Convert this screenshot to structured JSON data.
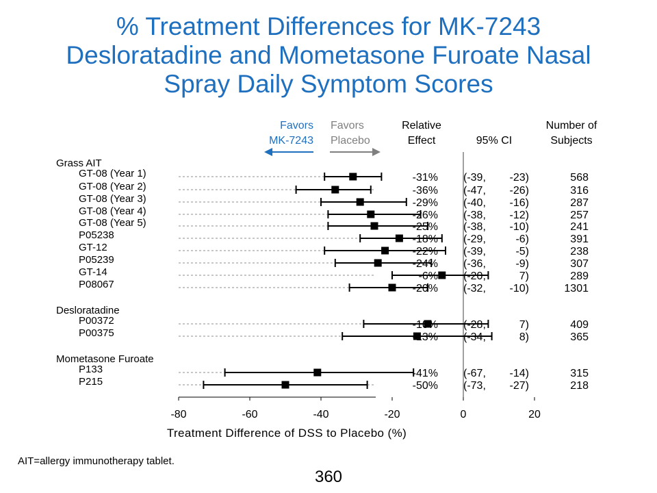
{
  "title_lines": [
    "% Treatment Differences for MK-7243",
    "Desloratadine and Mometasone Furoate Nasal",
    "Spray Daily Symptom Scores"
  ],
  "favors_left": [
    "Favors",
    "MK-7243"
  ],
  "favors_right": [
    "Favors",
    "Placebo"
  ],
  "col_headers": {
    "effect": [
      "Relative",
      "Effect"
    ],
    "ci": "95% CI",
    "n": [
      "Number of",
      "Subjects"
    ]
  },
  "colors": {
    "title": "#1f6fbf",
    "favors_left": "#1f6fbf",
    "favors_right": "#7f7f7f",
    "ref_line": "#808080",
    "dashes": "#8c8c8c"
  },
  "footnote": "AIT=allergy immunotherapy tablet.",
  "page_number": "360",
  "chart_data": {
    "type": "forest",
    "xlabel": "Treatment Difference of DSS to Placebo (%)",
    "xlim": [
      -80,
      25
    ],
    "xticks": [
      -80,
      -60,
      -40,
      -20,
      0,
      20
    ],
    "reference_line": 0,
    "groups": [
      {
        "name": "Grass AIT",
        "studies": [
          {
            "label": "GT-08 (Year 1)",
            "estimate": -31,
            "lower": -39,
            "upper": -23,
            "effect": "-31%",
            "ci_low": "(-39,",
            "ci_high": "-23)",
            "n": "568"
          },
          {
            "label": "GT-08 (Year 2)",
            "estimate": -36,
            "lower": -47,
            "upper": -26,
            "effect": "-36%",
            "ci_low": "(-47,",
            "ci_high": "-26)",
            "n": "316"
          },
          {
            "label": "GT-08 (Year 3)",
            "estimate": -29,
            "lower": -40,
            "upper": -16,
            "effect": "-29%",
            "ci_low": "(-40,",
            "ci_high": "-16)",
            "n": "287"
          },
          {
            "label": "GT-08 (Year 4)",
            "estimate": -26,
            "lower": -38,
            "upper": -12,
            "effect": "-26%",
            "ci_low": "(-38,",
            "ci_high": "-12)",
            "n": "257"
          },
          {
            "label": "GT-08 (Year 5)",
            "estimate": -25,
            "lower": -38,
            "upper": -10,
            "effect": "-25%",
            "ci_low": "(-38,",
            "ci_high": "-10)",
            "n": "241"
          },
          {
            "label": "P05238",
            "estimate": -18,
            "lower": -29,
            "upper": -6,
            "effect": "-18%",
            "ci_low": "(-29,",
            "ci_high": "-6)",
            "n": "391"
          },
          {
            "label": "GT-12",
            "estimate": -22,
            "lower": -39,
            "upper": -5,
            "effect": "-22%",
            "ci_low": "(-39,",
            "ci_high": "-5)",
            "n": "238"
          },
          {
            "label": "P05239",
            "estimate": -24,
            "lower": -36,
            "upper": -9,
            "effect": "-24%",
            "ci_low": "(-36,",
            "ci_high": "-9)",
            "n": "307"
          },
          {
            "label": "GT-14",
            "estimate": -6,
            "lower": -20,
            "upper": 7,
            "effect": "-6%",
            "ci_low": "(-20,",
            "ci_high": "7)",
            "n": "289"
          },
          {
            "label": "P08067",
            "estimate": -20,
            "lower": -32,
            "upper": -10,
            "effect": "-20%",
            "ci_low": "(-32,",
            "ci_high": "-10)",
            "n": "1301"
          }
        ]
      },
      {
        "name": "Desloratadine",
        "studies": [
          {
            "label": "P00372",
            "estimate": -10,
            "lower": -28,
            "upper": 7,
            "effect": "-10%",
            "ci_low": "(-28,",
            "ci_high": "7)",
            "n": "409"
          },
          {
            "label": "P00375",
            "estimate": -13,
            "lower": -34,
            "upper": 8,
            "effect": "-13%",
            "ci_low": "(-34,",
            "ci_high": "8)",
            "n": "365"
          }
        ]
      },
      {
        "name": "Mometasone Furoate",
        "studies": [
          {
            "label": "P133",
            "estimate": -41,
            "lower": -67,
            "upper": -14,
            "effect": "-41%",
            "ci_low": "(-67,",
            "ci_high": "-14)",
            "n": "315"
          },
          {
            "label": "P215",
            "estimate": -50,
            "lower": -73,
            "upper": -27,
            "effect": "-50%",
            "ci_low": "(-73,",
            "ci_high": "-27)",
            "n": "218"
          }
        ]
      }
    ]
  }
}
